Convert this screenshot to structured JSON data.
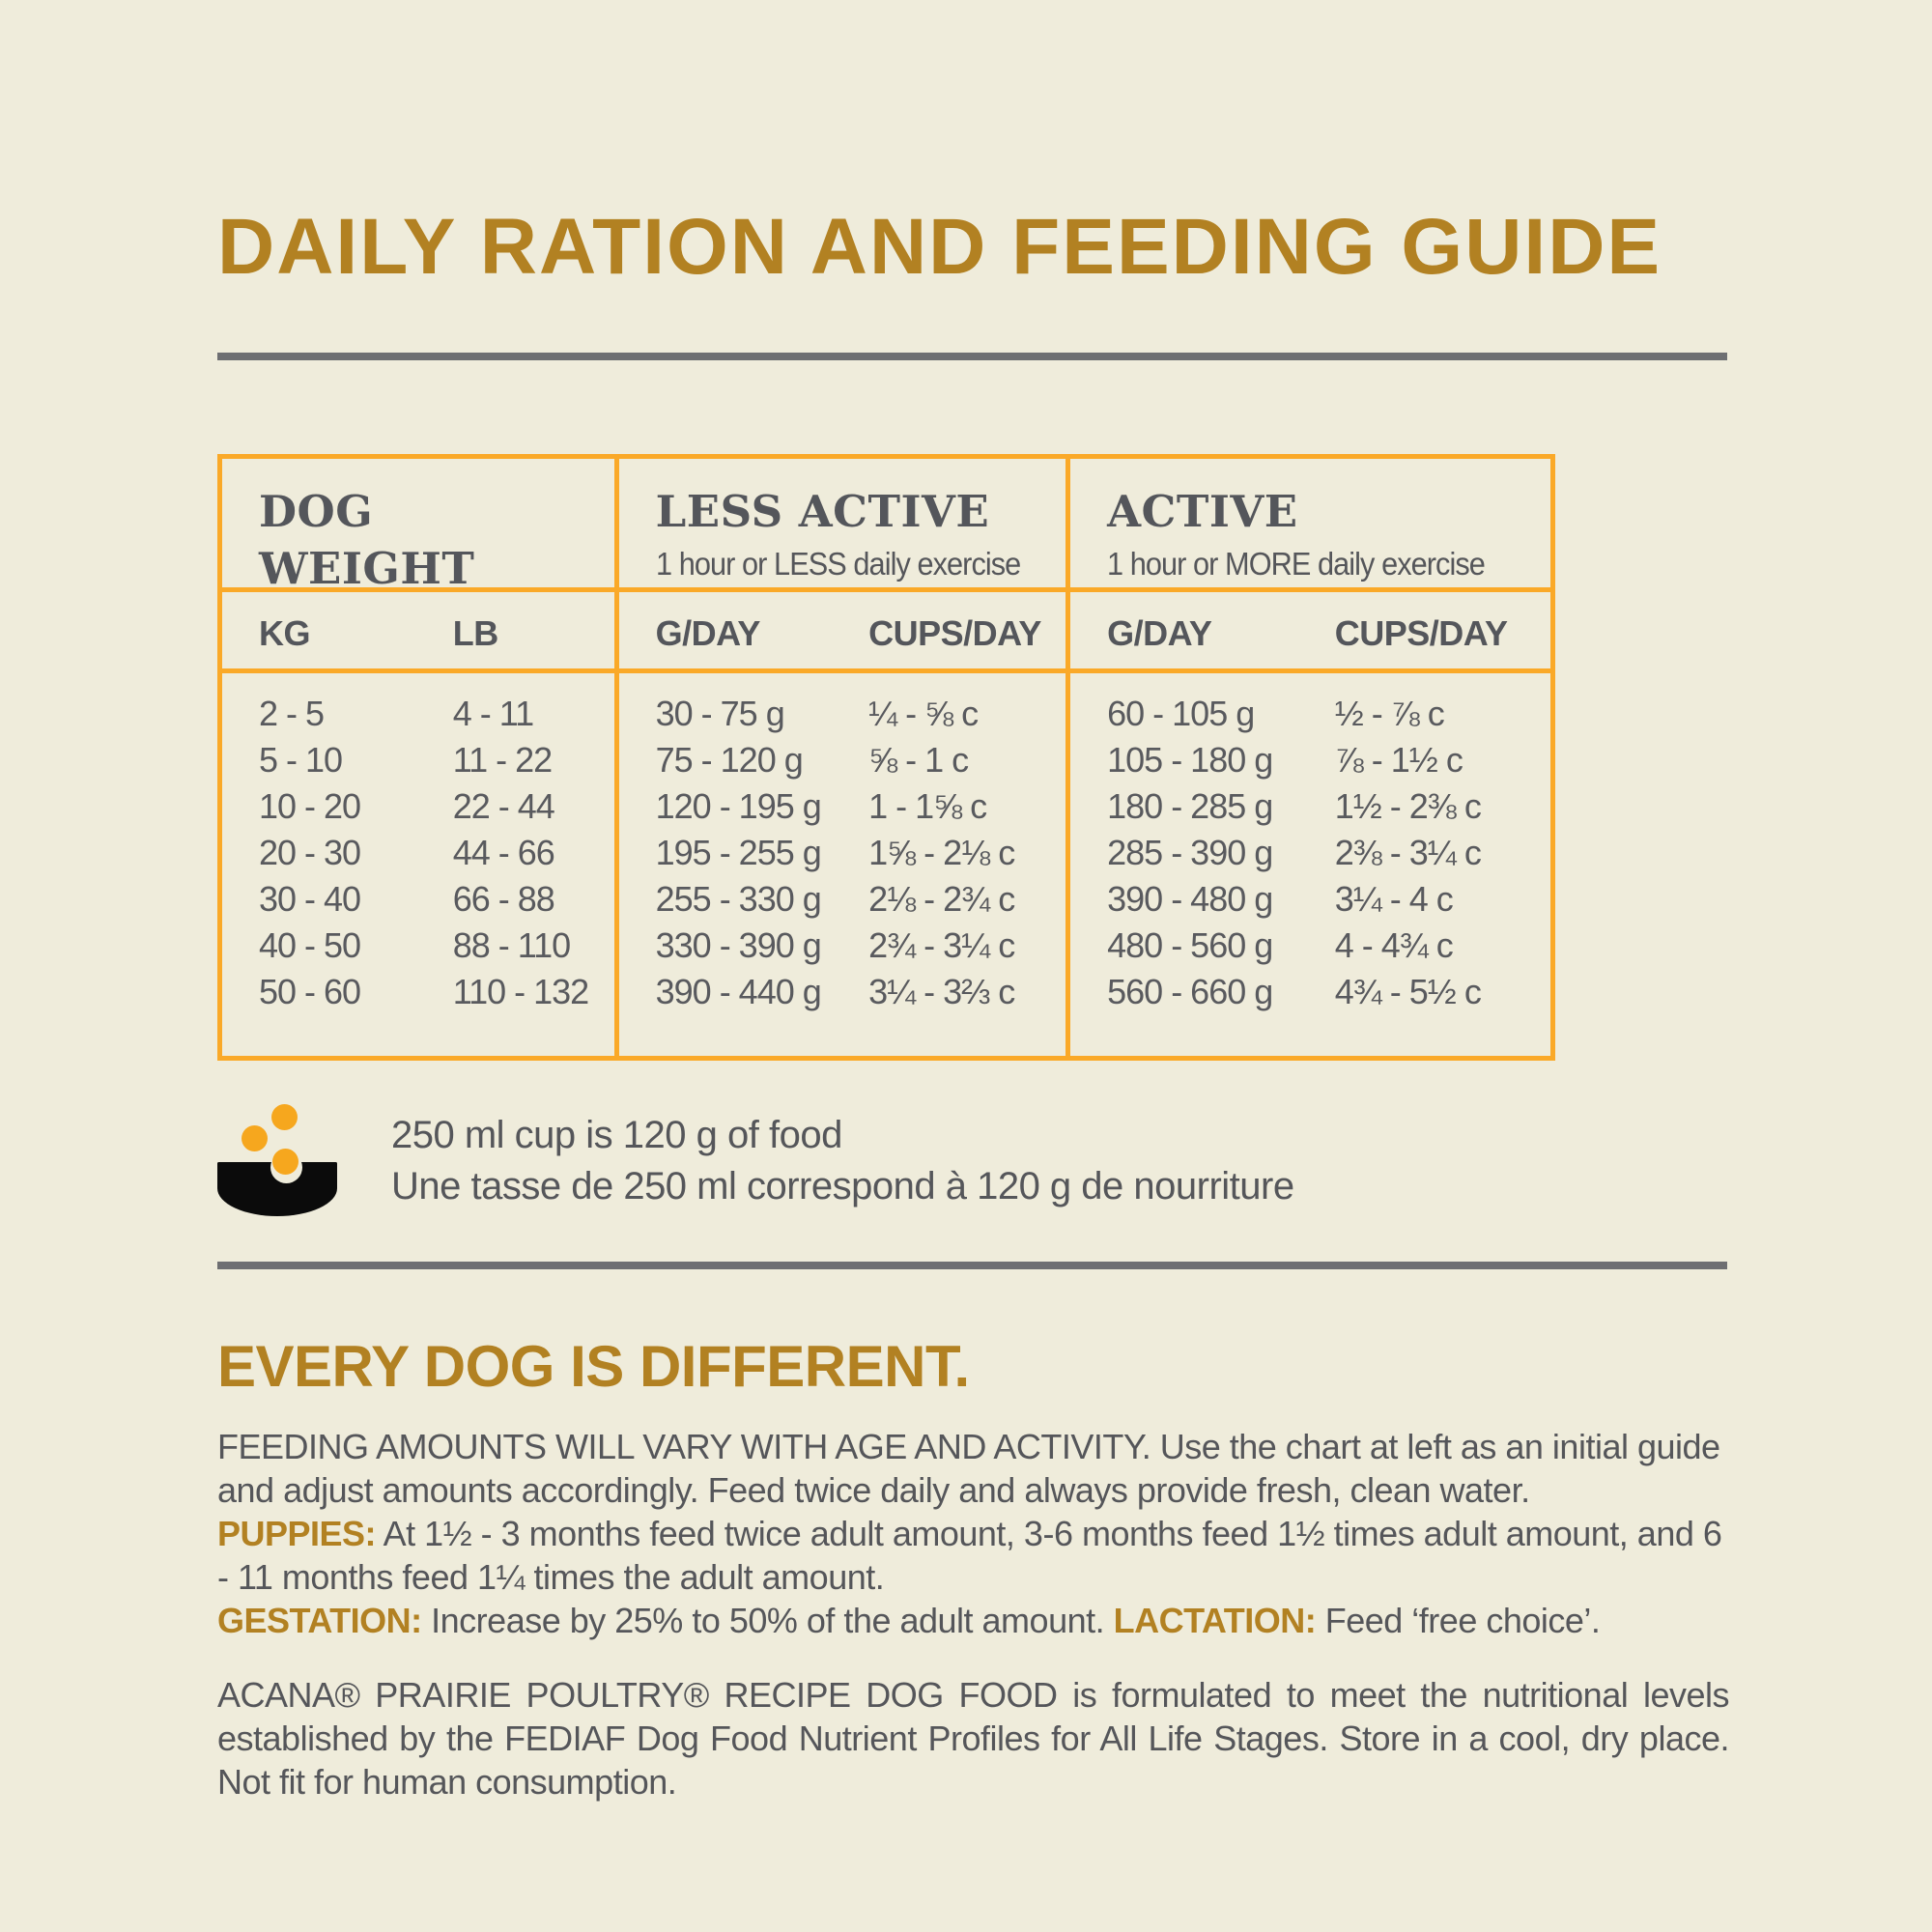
{
  "colors": {
    "background": "#EFECDB",
    "accent_gold": "#B28122",
    "accent_orange": "#FAA928",
    "text_dark": "#55565A",
    "rule_gray": "#6E6F72",
    "bowl_black": "#0B0B0B"
  },
  "page": {
    "title": "DAILY RATION AND FEEDING GUIDE"
  },
  "table": {
    "groups": [
      {
        "title_top": "DOG",
        "title_bottom": "WEIGHT",
        "subtitle": ""
      },
      {
        "title_top": "LESS ACTIVE",
        "title_bottom": "",
        "subtitle": "1 hour or LESS daily exercise"
      },
      {
        "title_top": "ACTIVE",
        "title_bottom": "",
        "subtitle": "1 hour or MORE daily exercise"
      }
    ],
    "sub_headers": [
      "KG",
      "LB",
      "G/DAY",
      "CUPS/DAY",
      "G/DAY",
      "CUPS/DAY"
    ],
    "rows": [
      {
        "kg": "2 - 5",
        "lb": "4 - 11",
        "la_g": "30 - 75 g",
        "la_c": "¼ - ⅝ c",
        "a_g": "60 - 105 g",
        "a_c": "½ - ⅞ c"
      },
      {
        "kg": "5 - 10",
        "lb": "11 - 22",
        "la_g": "75 - 120 g",
        "la_c": "⅝ - 1 c",
        "a_g": "105 - 180 g",
        "a_c": "⅞ - 1½ c"
      },
      {
        "kg": "10 - 20",
        "lb": "22 - 44",
        "la_g": "120 - 195 g",
        "la_c": "1 - 1⅝ c",
        "a_g": "180 - 285 g",
        "a_c": "1½ - 2⅜ c"
      },
      {
        "kg": "20 - 30",
        "lb": "44 - 66",
        "la_g": "195 - 255 g",
        "la_c": "1⅝ - 2⅛ c",
        "a_g": "285 - 390 g",
        "a_c": "2⅜ - 3¼ c"
      },
      {
        "kg": "30 - 40",
        "lb": "66 - 88",
        "la_g": "255 - 330 g",
        "la_c": "2⅛ - 2¾ c",
        "a_g": "390 - 480 g",
        "a_c": "3¼ - 4  c"
      },
      {
        "kg": "40 - 50",
        "lb": "88 - 110",
        "la_g": "330 - 390 g",
        "la_c": "2¾ - 3¼ c",
        "a_g": "480 - 560 g",
        "a_c": "4 - 4¾ c"
      },
      {
        "kg": "50 - 60",
        "lb": "110 - 132",
        "la_g": "390 - 440 g",
        "la_c": "3¼ - 3⅔ c",
        "a_g": "560 - 660 g",
        "a_c": "4¾ - 5½ c"
      }
    ]
  },
  "cup_note": {
    "line1": "250 ml cup is 120 g of food",
    "line2": "Une tasse de 250 ml correspond à 120 g de nourriture"
  },
  "section": {
    "heading": "EVERY DOG IS DIFFERENT.",
    "feeding_text": "FEEDING AMOUNTS WILL VARY WITH AGE AND ACTIVITY.  Use the chart at left as an initial guide and adjust amounts accordingly. Feed twice daily and always provide fresh, clean water.",
    "puppies_label": "PUPPIES:",
    "puppies_text": " At 1½ - 3 months feed twice adult amount, 3-6 months feed 1½ times adult amount, and 6 - 11 months feed 1¼ times the adult amount.",
    "gestation_label": "GESTATION:",
    "gestation_text": " Increase by 25% to 50% of the adult amount. ",
    "lactation_label": "LACTATION:",
    "lactation_text": " Feed ‘free choice’.",
    "footer": "ACANA® PRAIRIE POULTRY® RECIPE DOG FOOD is formulated to meet the nutritional levels established by the FEDIAF Dog Food Nutrient Profiles for All Life Stages. Store in a cool, dry place. Not fit for human consumption."
  }
}
